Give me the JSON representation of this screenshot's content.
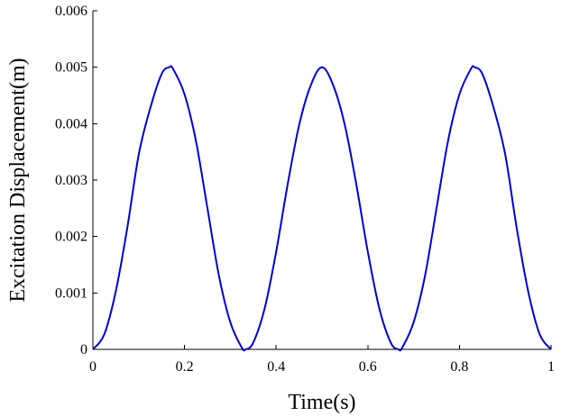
{
  "chart_data": {
    "type": "line",
    "title": "",
    "xlabel": "Time(s)",
    "ylabel": "Excitation Displacement(m)",
    "xlim": [
      0,
      1
    ],
    "ylim": [
      0,
      0.006
    ],
    "x_ticks": [
      0,
      0.2,
      0.4,
      0.6,
      0.8,
      1
    ],
    "x_tick_labels": [
      "0",
      "0.2",
      "0.4",
      "0.6",
      "0.8",
      "1"
    ],
    "y_ticks": [
      0,
      0.001,
      0.002,
      0.003,
      0.004,
      0.005,
      0.006
    ],
    "y_tick_labels": [
      "0",
      "0.001",
      "0.002",
      "0.003",
      "0.004",
      "0.005",
      "0.006"
    ],
    "grid": false,
    "legend": "none",
    "series": [
      {
        "color": "#0000cc",
        "x": [
          0,
          0.025,
          0.05,
          0.075,
          0.1,
          0.125,
          0.15,
          0.1667,
          0.175,
          0.2,
          0.225,
          0.25,
          0.275,
          0.3,
          0.325,
          0.3333,
          0.35,
          0.375,
          0.4,
          0.425,
          0.45,
          0.475,
          0.5,
          0.525,
          0.55,
          0.575,
          0.6,
          0.625,
          0.65,
          0.6667,
          0.675,
          0.7,
          0.725,
          0.75,
          0.775,
          0.8,
          0.825,
          0.8333,
          0.85,
          0.875,
          0.9,
          0.925,
          0.95,
          0.975,
          1
        ],
        "y": [
          0,
          0.00027,
          0.00103,
          0.00215,
          0.00345,
          0.00427,
          0.00488,
          0.005,
          0.00497,
          0.00452,
          0.00369,
          0.0025,
          0.00131,
          0.00048,
          3e-05,
          0,
          0.00012,
          0.00073,
          0.00173,
          0.00292,
          0.00397,
          0.00467,
          0.005,
          0.00467,
          0.00397,
          0.00292,
          0.00173,
          0.00073,
          0.00012,
          0,
          3e-05,
          0.00048,
          0.00131,
          0.0025,
          0.00369,
          0.00452,
          0.00497,
          0.005,
          0.00488,
          0.00427,
          0.00345,
          0.00215,
          0.00103,
          0.00027,
          0
        ]
      }
    ]
  }
}
